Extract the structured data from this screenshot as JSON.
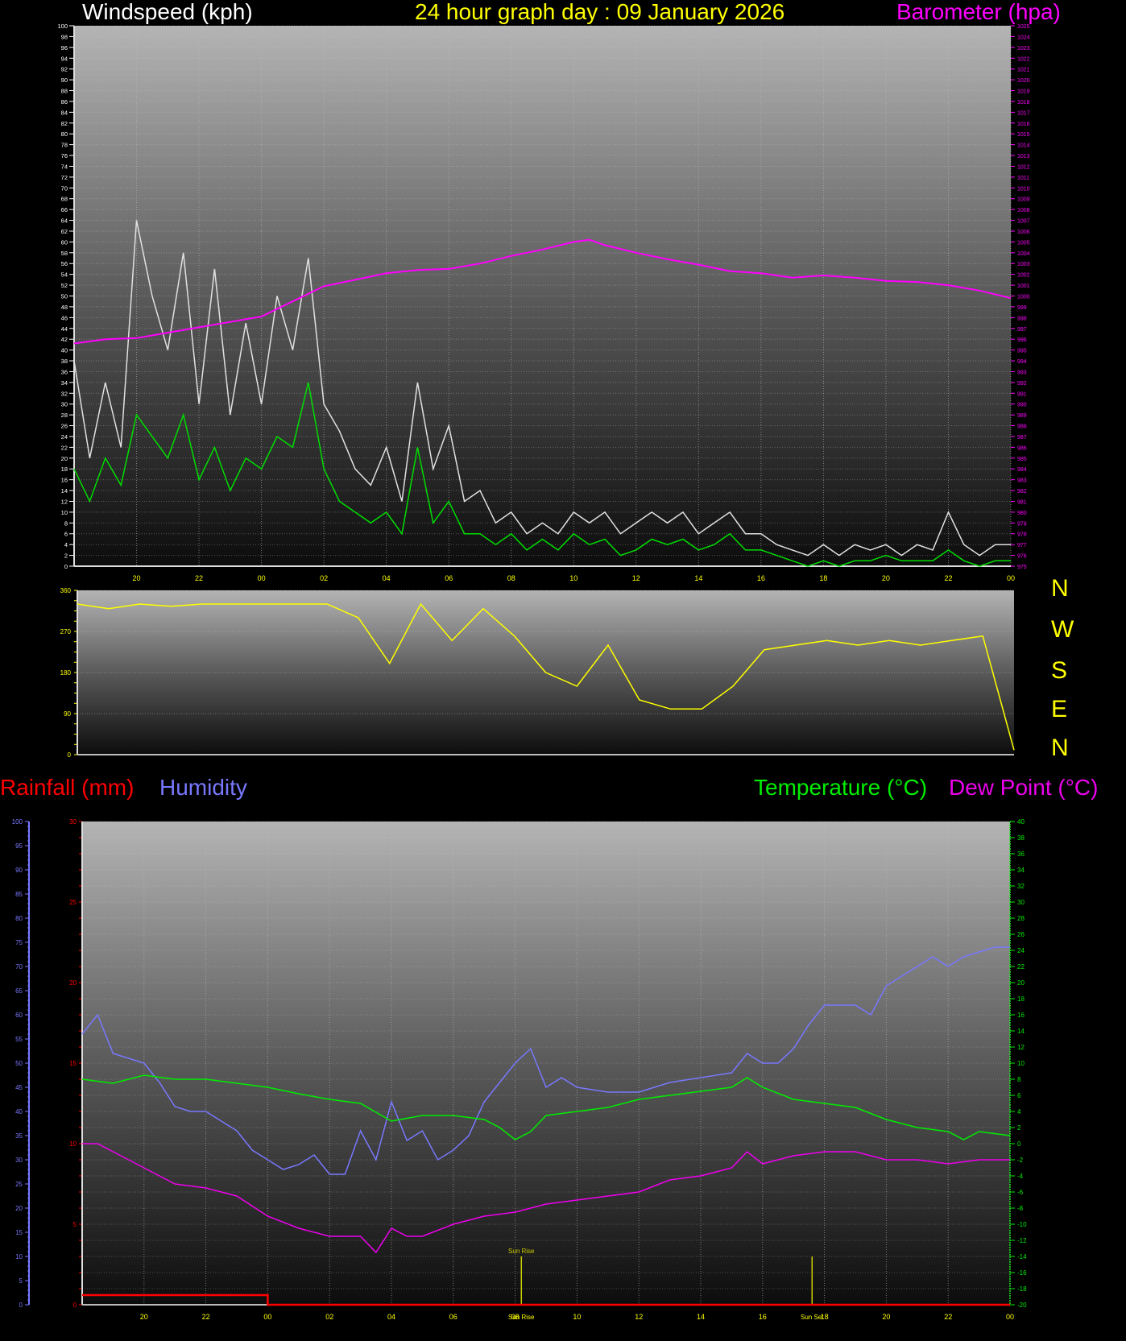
{
  "header": {
    "windspeed_title": "Windspeed (kph)",
    "graph_title": "24 hour graph day : 09 January 2026",
    "barometer_title": "Barometer (hpa)"
  },
  "compass": [
    "N",
    "W",
    "S",
    "E",
    "N"
  ],
  "lower_header": {
    "rainfall_title": "Rainfall (mm)",
    "humidity_title": "Humidity",
    "temperature_title": "Temperature (°C)",
    "dewpoint_title": "Dew Point (°C)"
  },
  "markers": {
    "sunrise_label": "Sun Rise",
    "sunset_label": "Sun Set"
  },
  "colors": {
    "windspeed": "#e0e0e0",
    "wind_avg": "#00dd00",
    "barometer": "#ff00ff",
    "direction": "#ffff00",
    "rainfall": "#ff0000",
    "humidity": "#7878ff",
    "temperature": "#00ee00",
    "dewpoint": "#ee00ee"
  },
  "chart_data": [
    {
      "type": "line",
      "title": "Windspeed (kph) / Barometer (hpa)",
      "xlabel": "",
      "x_ticks": [
        "20",
        "22",
        "00",
        "02",
        "04",
        "06",
        "08",
        "10",
        "12",
        "14",
        "16",
        "18",
        "20",
        "22",
        "00"
      ],
      "y_left": {
        "label": "Windspeed (kph)",
        "range": [
          0,
          100
        ],
        "step": 2
      },
      "y_right": {
        "label": "Barometer (hpa)",
        "range": [
          975,
          1025
        ],
        "step": 1
      },
      "grid": true,
      "series": [
        {
          "name": "Wind gust (kph)",
          "axis": "left",
          "x_hours": [
            -6,
            -5.5,
            -5,
            -4.5,
            -4,
            -3.5,
            -3,
            -2.5,
            -2,
            -1.5,
            -1,
            -0.5,
            0,
            0.5,
            1,
            1.5,
            2,
            2.5,
            3,
            3.5,
            4,
            4.5,
            5,
            5.5,
            6,
            6.5,
            7,
            7.5,
            8,
            8.5,
            9,
            9.5,
            10,
            10.5,
            11,
            11.5,
            12,
            12.5,
            13,
            13.5,
            14,
            14.5,
            15,
            15.5,
            16,
            16.5,
            17,
            17.5,
            18,
            18.5,
            19,
            19.5,
            20,
            20.5,
            21,
            21.5,
            22,
            22.5,
            23,
            23.5,
            24
          ],
          "values": [
            38,
            20,
            34,
            22,
            64,
            50,
            40,
            58,
            30,
            55,
            28,
            45,
            30,
            50,
            40,
            57,
            30,
            25,
            18,
            15,
            22,
            12,
            34,
            18,
            26,
            12,
            14,
            8,
            10,
            6,
            8,
            6,
            10,
            8,
            10,
            6,
            8,
            10,
            8,
            10,
            6,
            8,
            10,
            6,
            6,
            4,
            3,
            2,
            4,
            2,
            4,
            3,
            4,
            2,
            4,
            3,
            10,
            4,
            2,
            4,
            4
          ]
        },
        {
          "name": "Wind average (kph)",
          "axis": "left",
          "x_hours": [
            -6,
            -5.5,
            -5,
            -4.5,
            -4,
            -3.5,
            -3,
            -2.5,
            -2,
            -1.5,
            -1,
            -0.5,
            0,
            0.5,
            1,
            1.5,
            2,
            2.5,
            3,
            3.5,
            4,
            4.5,
            5,
            5.5,
            6,
            6.5,
            7,
            7.5,
            8,
            8.5,
            9,
            9.5,
            10,
            10.5,
            11,
            11.5,
            12,
            12.5,
            13,
            13.5,
            14,
            14.5,
            15,
            15.5,
            16,
            16.5,
            17,
            17.5,
            18,
            18.5,
            19,
            19.5,
            20,
            20.5,
            21,
            21.5,
            22,
            22.5,
            23,
            23.5,
            24
          ],
          "values": [
            18,
            12,
            20,
            15,
            28,
            24,
            20,
            28,
            16,
            22,
            14,
            20,
            18,
            24,
            22,
            34,
            18,
            12,
            10,
            8,
            10,
            6,
            22,
            8,
            12,
            6,
            6,
            4,
            6,
            3,
            5,
            3,
            6,
            4,
            5,
            2,
            3,
            5,
            4,
            5,
            3,
            4,
            6,
            3,
            3,
            2,
            1,
            0,
            1,
            0,
            1,
            1,
            2,
            1,
            1,
            1,
            3,
            1,
            0,
            1,
            1
          ]
        },
        {
          "name": "Barometer (hpa)",
          "axis": "right",
          "x_hours": [
            -6,
            -5,
            -4,
            -3,
            -2,
            -1,
            0,
            1,
            2,
            3,
            4,
            5,
            6,
            7,
            8,
            9,
            10,
            10.5,
            11,
            12,
            13,
            14,
            15,
            16,
            17,
            18,
            19,
            20,
            21,
            22,
            23,
            24
          ],
          "values": [
            995.6,
            996.0,
            996.1,
            996.6,
            997.1,
            997.6,
            998.1,
            999.5,
            1000.9,
            1001.5,
            1002.1,
            1002.4,
            1002.5,
            1003.0,
            1003.7,
            1004.3,
            1005.0,
            1005.2,
            1004.7,
            1004.0,
            1003.4,
            1002.9,
            1002.3,
            1002.1,
            1001.7,
            1001.9,
            1001.7,
            1001.4,
            1001.3,
            1001.0,
            1000.5,
            999.8
          ]
        }
      ]
    },
    {
      "type": "line",
      "title": "Wind direction",
      "y_left": {
        "label": "",
        "range": [
          0,
          360
        ],
        "ticks": [
          0,
          90,
          180,
          270,
          360
        ]
      },
      "y_right_labels": [
        "N",
        "W",
        "S",
        "E",
        "N"
      ],
      "series": [
        {
          "name": "Direction (deg)",
          "x_hours": [
            -6,
            -5,
            -4,
            -3,
            -2,
            -1,
            0,
            1,
            2,
            3,
            4,
            5,
            6,
            7,
            8,
            9,
            10,
            11,
            12,
            13,
            14,
            15,
            16,
            17,
            18,
            19,
            20,
            21,
            22,
            23,
            24
          ],
          "values": [
            330,
            320,
            330,
            325,
            330,
            330,
            330,
            330,
            330,
            300,
            200,
            330,
            250,
            320,
            260,
            180,
            150,
            240,
            120,
            100,
            100,
            150,
            230,
            240,
            250,
            240,
            250,
            240,
            250,
            260,
            10
          ]
        }
      ]
    },
    {
      "type": "line",
      "title": "Rainfall (mm) / Humidity / Temperature (°C) / Dew Point (°C)",
      "x_ticks": [
        "20",
        "22",
        "00",
        "02",
        "04",
        "06",
        "08",
        "10",
        "12",
        "14",
        "16",
        "18",
        "20",
        "22",
        "00"
      ],
      "x_annotations": [
        {
          "label": "Sun Rise",
          "hour": 8.2
        },
        {
          "label": "Sun Set",
          "hour": 17.6
        }
      ],
      "y_humidity": {
        "range": [
          0,
          100
        ],
        "step": 5
      },
      "y_rainfall": {
        "range": [
          0,
          30
        ],
        "step": 5
      },
      "y_temperature": {
        "range": [
          -20,
          40
        ],
        "step": 2
      },
      "grid": true,
      "series": [
        {
          "name": "Rainfall (mm)",
          "axis": "rainfall",
          "x_hours": [
            -6,
            0,
            0,
            24
          ],
          "values": [
            0.6,
            0.6,
            0,
            0
          ]
        },
        {
          "name": "Humidity (%)",
          "axis": "humidity",
          "x_hours": [
            -6,
            -5.5,
            -5,
            -4,
            -3.5,
            -3,
            -2.5,
            -2,
            -1,
            -0.5,
            0,
            0.5,
            1,
            1.5,
            2,
            2.5,
            3,
            3.5,
            4,
            4.5,
            5,
            5.5,
            6,
            6.5,
            7,
            7.5,
            8,
            8.5,
            9,
            9.5,
            10,
            11,
            12,
            13,
            14,
            15,
            15.5,
            16,
            16.5,
            17,
            17.5,
            18,
            18.5,
            19,
            19.5,
            20,
            20.5,
            21,
            21.5,
            22,
            22.5,
            23,
            23.5,
            24
          ],
          "values": [
            56,
            60,
            52,
            50,
            46,
            41,
            40,
            40,
            36,
            32,
            30,
            28,
            29,
            31,
            27,
            27,
            36,
            30,
            42,
            34,
            36,
            30,
            32,
            35,
            42,
            46,
            50,
            53,
            45,
            47,
            45,
            44,
            44,
            46,
            47,
            48,
            52,
            50,
            50,
            53,
            58,
            62,
            62,
            62,
            60,
            66,
            68,
            70,
            72,
            70,
            72,
            73,
            74,
            74
          ]
        },
        {
          "name": "Temperature (°C)",
          "axis": "temperature",
          "x_hours": [
            -6,
            -5,
            -4,
            -3,
            -2,
            -1,
            0,
            1,
            2,
            3,
            4,
            5,
            6,
            7,
            7.5,
            8,
            8.5,
            9,
            10,
            11,
            12,
            13,
            14,
            15,
            15.5,
            16,
            17,
            18,
            19,
            20,
            21,
            22,
            22.5,
            23,
            24
          ],
          "values": [
            8,
            7.5,
            8.5,
            8,
            8,
            7.5,
            7,
            6.2,
            5.5,
            5,
            2.8,
            3.5,
            3.5,
            3,
            2,
            0.5,
            1.5,
            3.5,
            4,
            4.5,
            5.5,
            6,
            6.5,
            7,
            8.2,
            7,
            5.5,
            5,
            4.5,
            3,
            2,
            1.5,
            0.5,
            1.5,
            1
          ]
        },
        {
          "name": "Dew Point (°C)",
          "axis": "temperature",
          "x_hours": [
            -6,
            -5.5,
            -5,
            -4,
            -3,
            -2,
            -1,
            0,
            1,
            2,
            3,
            3.5,
            4,
            4.5,
            5,
            6,
            7,
            8,
            9,
            10,
            11,
            12,
            13,
            14,
            15,
            15.5,
            16,
            17,
            18,
            19,
            20,
            21,
            22,
            23,
            24
          ],
          "values": [
            0,
            0,
            -1,
            -3,
            -5,
            -5.5,
            -6.5,
            -9,
            -10.5,
            -11.5,
            -11.5,
            -13.5,
            -10.5,
            -11.5,
            -11.5,
            -10,
            -9,
            -8.5,
            -7.5,
            -7,
            -6.5,
            -6,
            -4.5,
            -4,
            -3,
            -1,
            -2.5,
            -1.5,
            -1,
            -1,
            -2,
            -2,
            -2.5,
            -2,
            -2
          ]
        }
      ]
    }
  ]
}
